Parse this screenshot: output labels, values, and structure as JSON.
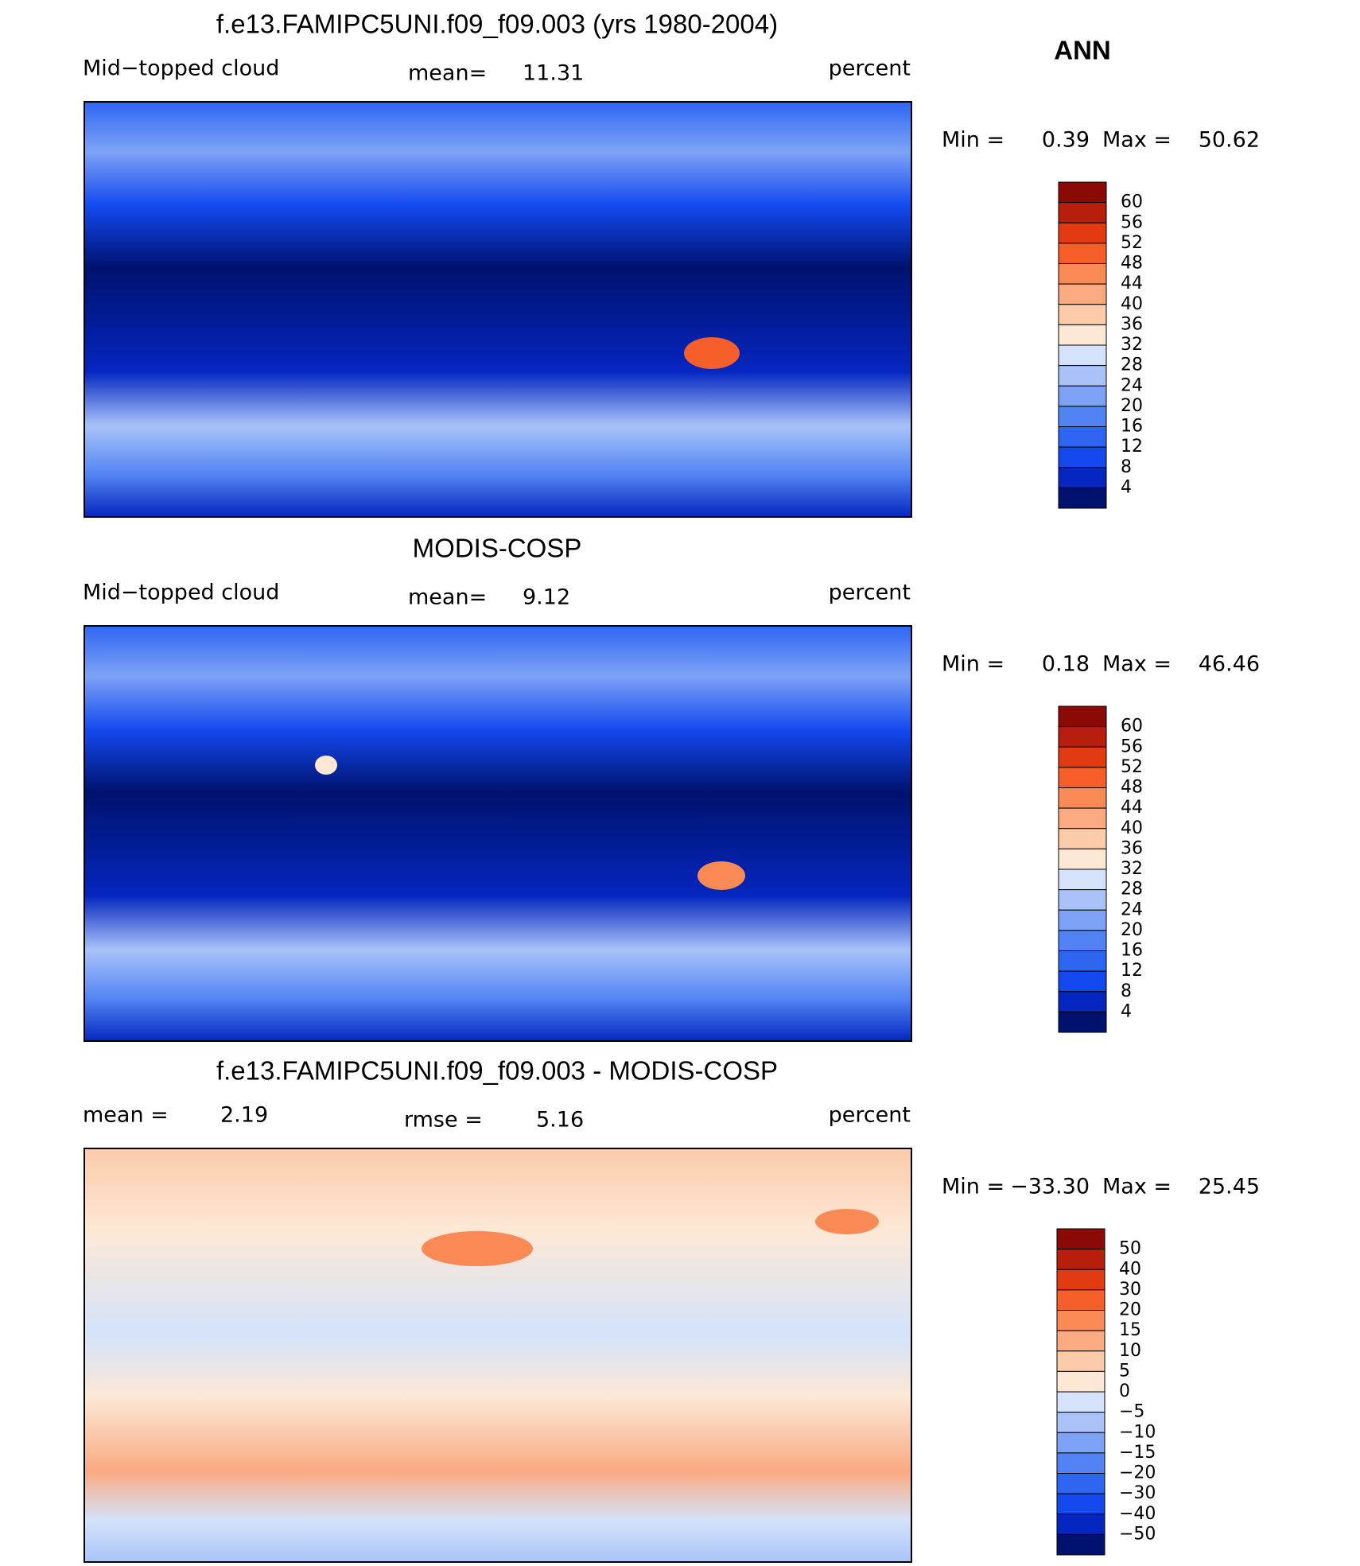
{
  "title": "ANN",
  "panels": [
    {
      "title": "f.e13.FAMIPC5UNI.f09_f09.003 (yrs 1980-2004)",
      "left_label": "Mid−topped cloud",
      "center_label": "mean=",
      "center_value": "11.31",
      "units": "percent",
      "min_label": "Min =",
      "min": "0.39",
      "max_label": "Max =",
      "max": "50.62",
      "colorbar": {
        "labels": [
          "60",
          "56",
          "52",
          "48",
          "44",
          "40",
          "36",
          "32",
          "28",
          "24",
          "20",
          "16",
          "12",
          "8",
          "4"
        ],
        "colors": [
          "#8b0a05",
          "#b81e0c",
          "#e23a12",
          "#f65e2a",
          "#f98a56",
          "#fbaa82",
          "#fccbaa",
          "#fde8d6",
          "#d4e3fb",
          "#a9c3f8",
          "#7ea3f6",
          "#5283f4",
          "#2e66f2",
          "#1449f0",
          "#0526c0",
          "#00126e"
        ]
      }
    },
    {
      "title": "MODIS-COSP",
      "left_label": "Mid−topped cloud",
      "center_label": "mean=",
      "center_value": "9.12",
      "units": "percent",
      "min_label": "Min =",
      "min": "0.18",
      "max_label": "Max =",
      "max": "46.46",
      "colorbar": {
        "labels": [
          "60",
          "56",
          "52",
          "48",
          "44",
          "40",
          "36",
          "32",
          "28",
          "24",
          "20",
          "16",
          "12",
          "8",
          "4"
        ],
        "colors": [
          "#8b0a05",
          "#b81e0c",
          "#e23a12",
          "#f65e2a",
          "#f98a56",
          "#fbaa82",
          "#fccbaa",
          "#fde8d6",
          "#d4e3fb",
          "#a9c3f8",
          "#7ea3f6",
          "#5283f4",
          "#2e66f2",
          "#1449f0",
          "#0526c0",
          "#00126e"
        ]
      }
    },
    {
      "title": "f.e13.FAMIPC5UNI.f09_f09.003 - MODIS-COSP",
      "left_label": "mean =",
      "left_value": "2.19",
      "center_label": "rmse =",
      "center_value": "5.16",
      "units": "percent",
      "min_label": "Min =",
      "min": "−33.30",
      "max_label": "Max =",
      "max": "25.45",
      "colorbar": {
        "labels": [
          "50",
          "40",
          "30",
          "20",
          "15",
          "10",
          "5",
          "0",
          "−5",
          "−10",
          "−15",
          "−20",
          "−30",
          "−40",
          "−50"
        ],
        "colors": [
          "#8b0a05",
          "#b81e0c",
          "#e23a12",
          "#f65e2a",
          "#f98a56",
          "#fbaa82",
          "#fccbaa",
          "#fde8d6",
          "#d4e3fb",
          "#a9c3f8",
          "#7ea3f6",
          "#5283f4",
          "#2e66f2",
          "#1449f0",
          "#0526c0",
          "#00126e"
        ]
      }
    }
  ]
}
